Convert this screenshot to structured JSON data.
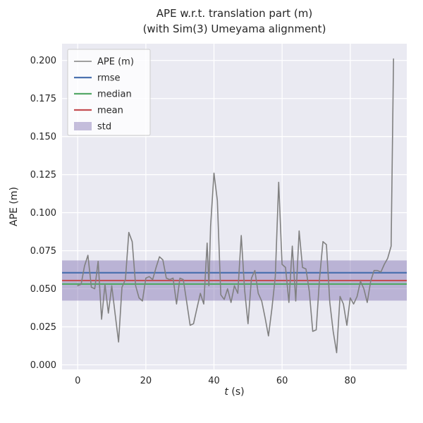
{
  "chart_data": {
    "type": "line",
    "title": "APE w.r.t. translation part (m)",
    "subtitle": "(with Sim(3) Umeyama alignment)",
    "xlabel": "t (s)",
    "xlabel_var": "t",
    "xlabel_unit": "(s)",
    "ylabel": "APE (m)",
    "xlim": [
      -4.6,
      96.6
    ],
    "ylim": [
      -0.003,
      0.211
    ],
    "xticks": [
      0,
      20,
      40,
      60,
      80
    ],
    "xtick_labels": [
      "0",
      "20",
      "40",
      "60",
      "80"
    ],
    "yticks": [
      0.0,
      0.025,
      0.05,
      0.075,
      0.1,
      0.125,
      0.15,
      0.175,
      0.2
    ],
    "ytick_labels": [
      "0.000",
      "0.025",
      "0.050",
      "0.075",
      "0.100",
      "0.125",
      "0.150",
      "0.175",
      "0.200"
    ],
    "grid": true,
    "legend_position": "upper-left",
    "stat_lines": [
      {
        "name": "rmse",
        "value": 0.0605,
        "color": "#4c72b0"
      },
      {
        "name": "median",
        "value": 0.0531,
        "color": "#55a868"
      },
      {
        "name": "mean",
        "value": 0.0554,
        "color": "#c44e52"
      }
    ],
    "band": {
      "name": "std",
      "lower": 0.0422,
      "upper": 0.0686,
      "color": "#8172b2",
      "alpha": 0.45
    },
    "series": [
      {
        "name": "APE (m)",
        "color": "#808080",
        "x": [
          0,
          1,
          2,
          3,
          4,
          5,
          6,
          7,
          8,
          9,
          10,
          11,
          12,
          13,
          14,
          15,
          16,
          17,
          18,
          19,
          20,
          21,
          22,
          23,
          24,
          25,
          26,
          27,
          28,
          29,
          30,
          31,
          32,
          33,
          34,
          35,
          36,
          37,
          38,
          38.5,
          39,
          40,
          41,
          42,
          43,
          44,
          45,
          46,
          47,
          48,
          49,
          50,
          51,
          52,
          53,
          54,
          55,
          56,
          57,
          58,
          59,
          60,
          61,
          62,
          63,
          64,
          65,
          66,
          67,
          68,
          69,
          70,
          71,
          72,
          73,
          74,
          75,
          76,
          77,
          78,
          79,
          80,
          81,
          82,
          83,
          84,
          85,
          86,
          87,
          88,
          89,
          90,
          91,
          92,
          92.7
        ],
        "y": [
          0.052,
          0.053,
          0.065,
          0.072,
          0.051,
          0.05,
          0.068,
          0.03,
          0.053,
          0.034,
          0.052,
          0.033,
          0.015,
          0.051,
          0.056,
          0.087,
          0.081,
          0.052,
          0.044,
          0.042,
          0.057,
          0.058,
          0.056,
          0.064,
          0.071,
          0.069,
          0.057,
          0.056,
          0.057,
          0.04,
          0.057,
          0.056,
          0.041,
          0.026,
          0.027,
          0.037,
          0.047,
          0.04,
          0.08,
          0.052,
          0.091,
          0.126,
          0.108,
          0.046,
          0.043,
          0.05,
          0.041,
          0.052,
          0.047,
          0.085,
          0.049,
          0.027,
          0.057,
          0.062,
          0.047,
          0.042,
          0.031,
          0.019,
          0.037,
          0.058,
          0.12,
          0.066,
          0.064,
          0.041,
          0.078,
          0.042,
          0.088,
          0.064,
          0.063,
          0.048,
          0.022,
          0.023,
          0.057,
          0.081,
          0.079,
          0.041,
          0.022,
          0.008,
          0.045,
          0.04,
          0.026,
          0.044,
          0.04,
          0.045,
          0.055,
          0.05,
          0.041,
          0.055,
          0.062,
          0.062,
          0.061,
          0.066,
          0.07,
          0.078,
          0.201
        ]
      }
    ],
    "legend": [
      {
        "label": "APE (m)",
        "color": "#808080",
        "type": "line",
        "lw": 1.6
      },
      {
        "label": "rmse",
        "color": "#4c72b0",
        "type": "line",
        "lw": 2.2
      },
      {
        "label": "median",
        "color": "#55a868",
        "type": "line",
        "lw": 2.2
      },
      {
        "label": "mean",
        "color": "#c44e52",
        "type": "line",
        "lw": 2.2
      },
      {
        "label": "std",
        "color": "#8172b2",
        "type": "patch",
        "lw": 0
      }
    ],
    "colors": {
      "figure_background": "#ffffff",
      "plot_background": "#eaeaf2",
      "grid": "#ffffff",
      "text": "#262626",
      "legend_border": "#cccccc"
    }
  }
}
